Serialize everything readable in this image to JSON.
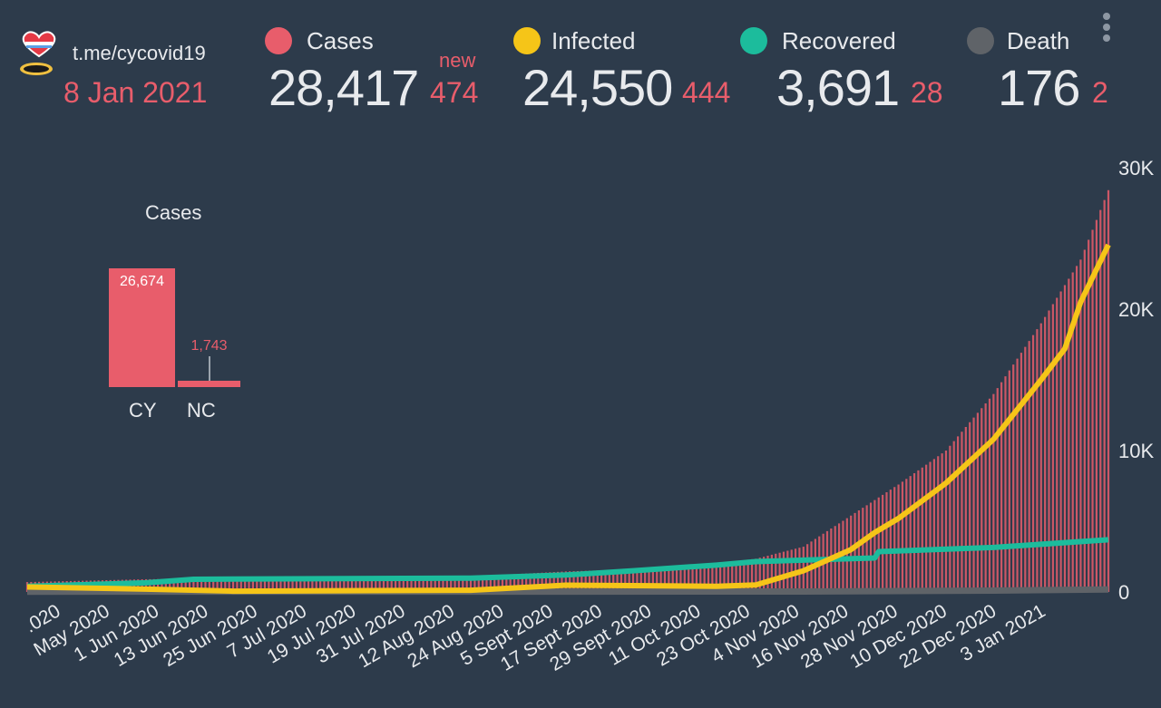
{
  "header": {
    "channel": "t.me/cycovid19",
    "date": "8 Jan 2021",
    "new_tag": "new"
  },
  "stats": [
    {
      "label": "Cases",
      "value": "28,417",
      "new": "474",
      "color": "#e85d6b"
    },
    {
      "label": "Infected",
      "value": "24,550",
      "new": "444",
      "color": "#f5c518"
    },
    {
      "label": "Recovered",
      "value": "3,691",
      "new": "28",
      "color": "#1cbc9c"
    },
    {
      "label": "Death",
      "value": "176",
      "new": "2",
      "color": "#5f6368"
    }
  ],
  "inset": {
    "title": "Cases",
    "bars": [
      {
        "label": "CY",
        "value": 26674,
        "value_text": "26,674"
      },
      {
        "label": "NC",
        "value": 1743,
        "value_text": "1,743"
      }
    ]
  },
  "chart_data": {
    "type": "bar",
    "ylim": [
      0,
      30000
    ],
    "yticks": [
      "0",
      "10K",
      "20K",
      "30K"
    ],
    "xticks": [
      ".020",
      "May 2020",
      "1 Jun 2020",
      "13 Jun 2020",
      "25 Jun 2020",
      "7 Jul 2020",
      "19 Jul 2020",
      "31 Jul 2020",
      "12 Aug 2020",
      "24 Aug 2020",
      "5 Sept 2020",
      "17 Sept 2020",
      "29 Sept 2020",
      "11 Oct 2020",
      "23 Oct 2020",
      "4 Nov 2020",
      "16 Nov 2020",
      "28 Nov 2020",
      "10 Dec 2020",
      "22 Dec 2020",
      "3 Jan 2021"
    ],
    "colors": {
      "cases": "#e85d6b",
      "infected": "#f5c518",
      "recovered": "#1cbc9c",
      "death": "#5f6368"
    },
    "series_points": {
      "cases": [
        [
          "2020-04-10",
          700
        ],
        [
          "2020-05-10",
          900
        ],
        [
          "2020-06-01",
          980
        ],
        [
          "2020-07-01",
          1010
        ],
        [
          "2020-07-31",
          1100
        ],
        [
          "2020-08-24",
          1450
        ],
        [
          "2020-09-10",
          1600
        ],
        [
          "2020-10-01",
          2000
        ],
        [
          "2020-10-11",
          2350
        ],
        [
          "2020-10-23",
          3200
        ],
        [
          "2020-11-04",
          5400
        ],
        [
          "2020-11-16",
          7600
        ],
        [
          "2020-11-28",
          10000
        ],
        [
          "2020-12-10",
          14000
        ],
        [
          "2020-12-22",
          19000
        ],
        [
          "2021-01-01",
          23500
        ],
        [
          "2021-01-08",
          28417
        ]
      ],
      "infected": [
        [
          "2020-04-10",
          350
        ],
        [
          "2020-05-10",
          200
        ],
        [
          "2020-06-01",
          60
        ],
        [
          "2020-07-31",
          120
        ],
        [
          "2020-08-24",
          480
        ],
        [
          "2020-09-10",
          450
        ],
        [
          "2020-10-01",
          400
        ],
        [
          "2020-10-11",
          500
        ],
        [
          "2020-10-23",
          1500
        ],
        [
          "2020-11-04",
          3000
        ],
        [
          "2020-11-10",
          4200
        ],
        [
          "2020-11-16",
          5200
        ],
        [
          "2020-11-28",
          7700
        ],
        [
          "2020-12-10",
          10800
        ],
        [
          "2020-12-22",
          15000
        ],
        [
          "2020-12-28",
          17200
        ],
        [
          "2021-01-01",
          20500
        ],
        [
          "2021-01-08",
          24550
        ]
      ],
      "recovered": [
        [
          "2020-04-10",
          400
        ],
        [
          "2020-05-10",
          650
        ],
        [
          "2020-05-22",
          900
        ],
        [
          "2020-07-31",
          980
        ],
        [
          "2020-08-24",
          1200
        ],
        [
          "2020-09-10",
          1500
        ],
        [
          "2020-10-01",
          1900
        ],
        [
          "2020-10-11",
          2150
        ],
        [
          "2020-11-10",
          2400
        ],
        [
          "2020-11-11",
          2850
        ],
        [
          "2020-12-10",
          3150
        ],
        [
          "2021-01-08",
          3691
        ]
      ],
      "death": [
        [
          "2020-04-10",
          20
        ],
        [
          "2020-10-23",
          30
        ],
        [
          "2020-12-10",
          100
        ],
        [
          "2021-01-08",
          176
        ]
      ]
    }
  }
}
